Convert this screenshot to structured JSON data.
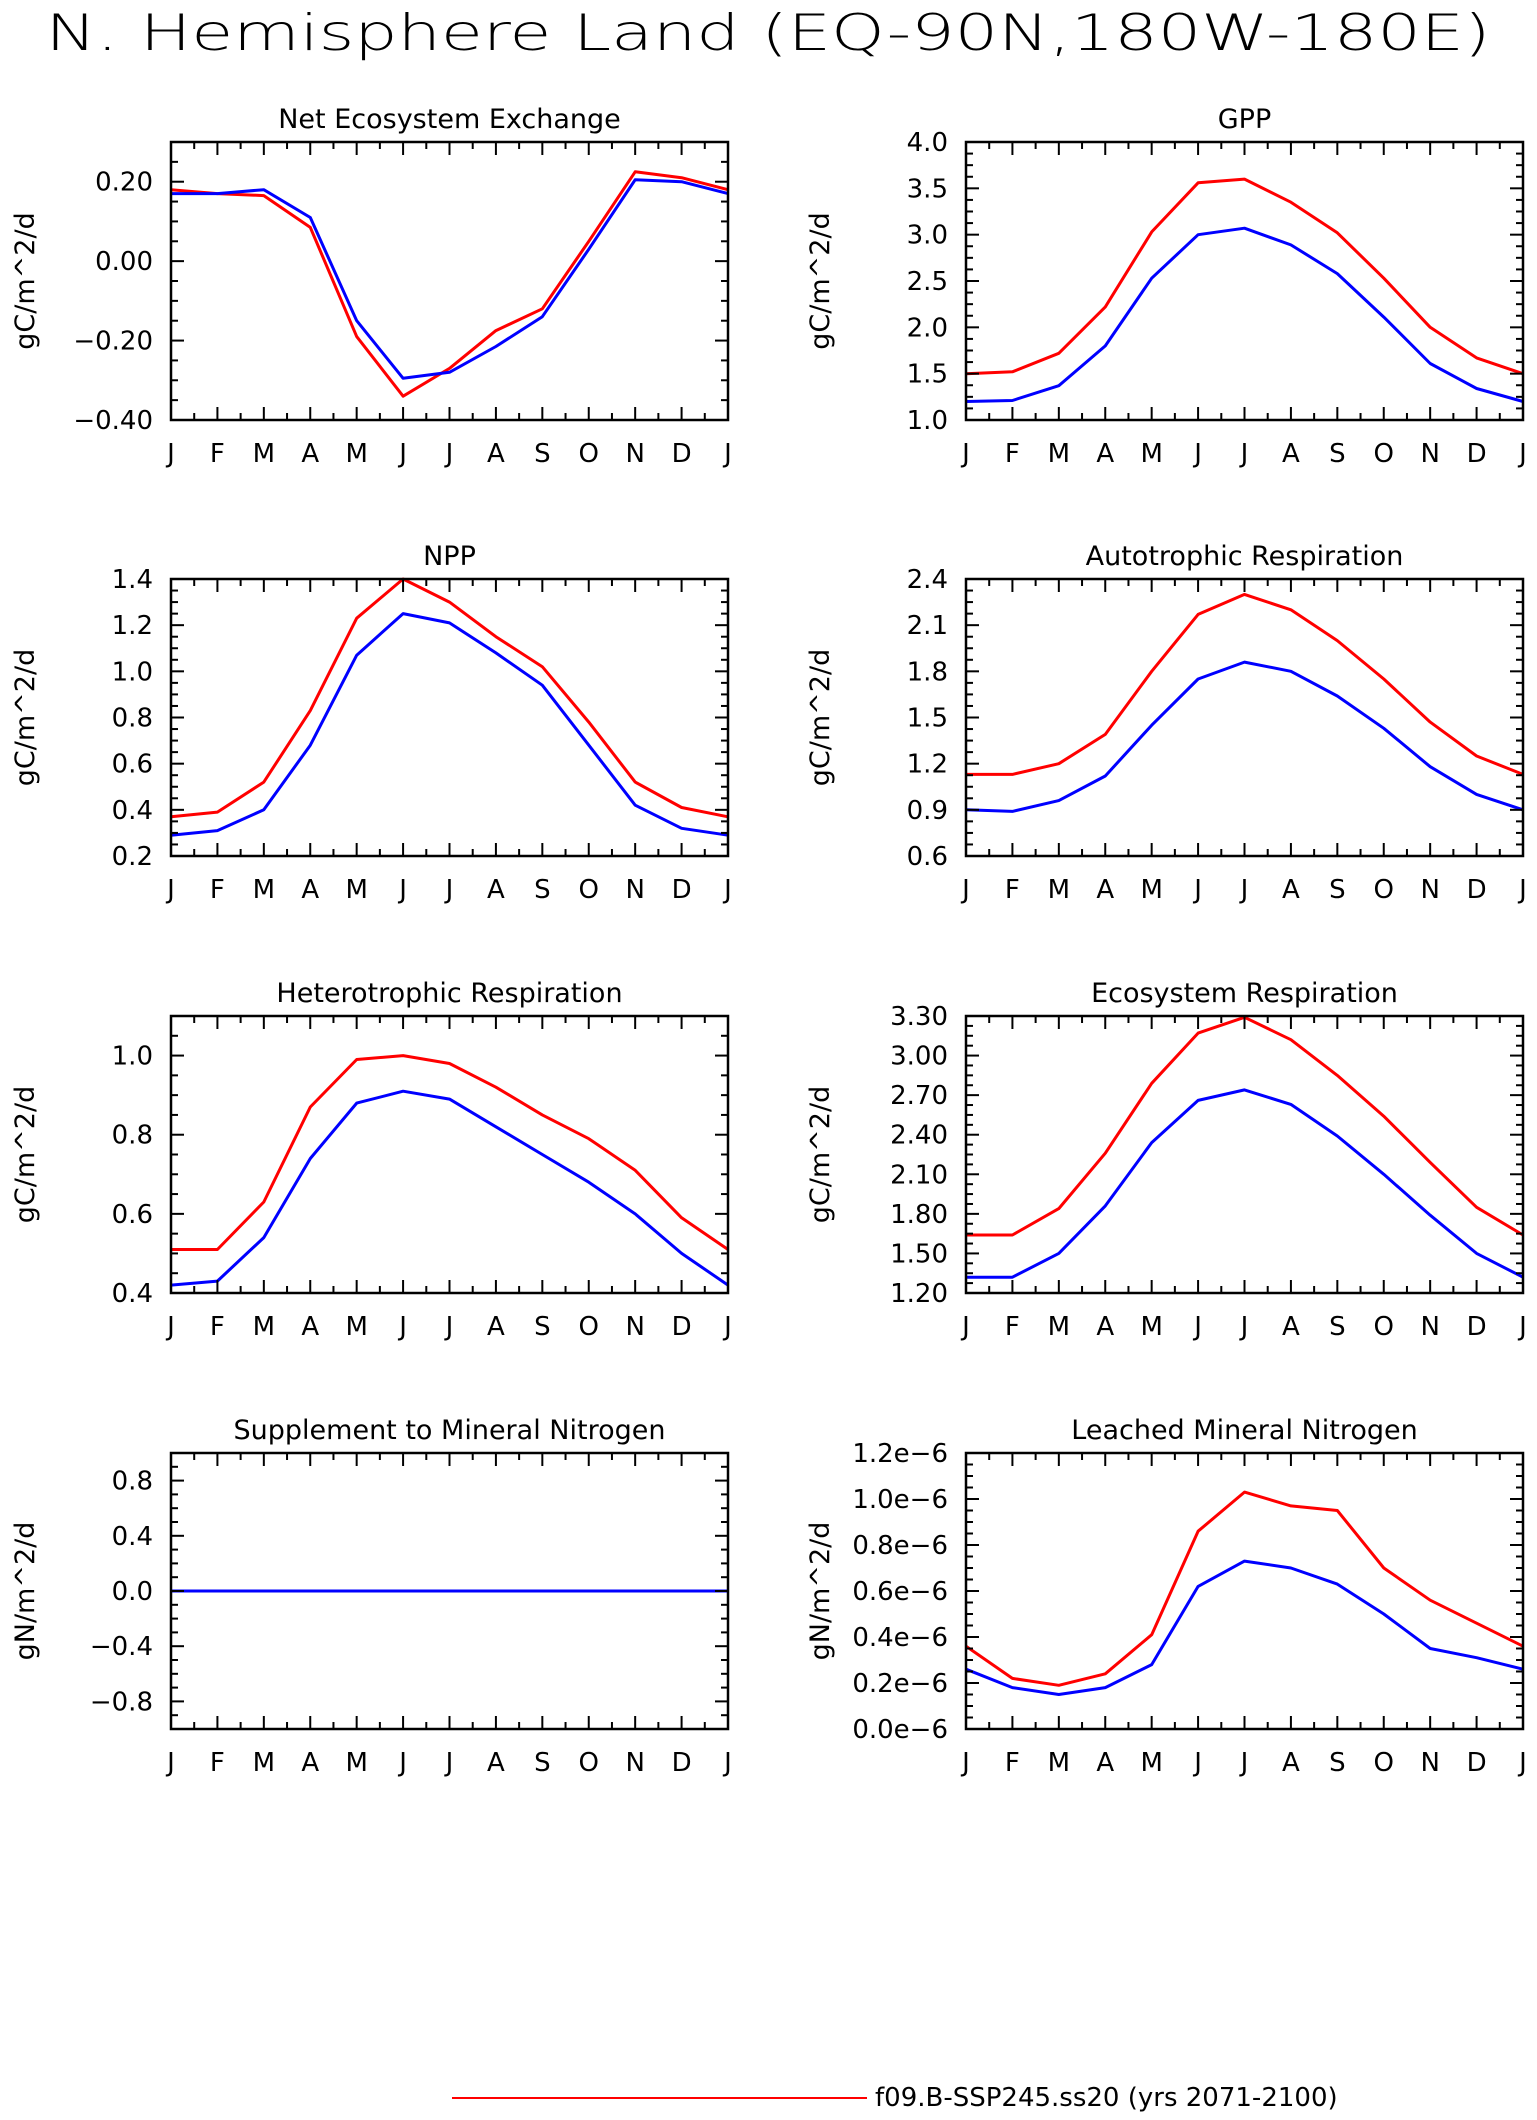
{
  "title": "N. Hemisphere Land (EQ-90N,180W-180E)",
  "colors": {
    "series_1": "#ff0000",
    "series_2": "#0000ff",
    "axis": "#000000"
  },
  "legend": [
    {
      "color": "#ff0000",
      "label": "f09.B-SSP245.ss20 (yrs 2071-2100)"
    }
  ],
  "chart_data": [
    {
      "type": "line",
      "title": "Net Ecosystem Exchange",
      "ylabel": "gC/m^2/d",
      "x": [
        "J",
        "F",
        "M",
        "A",
        "M",
        "J",
        "J",
        "A",
        "S",
        "O",
        "N",
        "D",
        "J"
      ],
      "ylim": [
        -0.4,
        0.3
      ],
      "yticks": [
        -0.4,
        -0.2,
        0.0,
        0.2
      ],
      "ytick_labels": [
        "−0.40",
        "−0.20",
        "0.00",
        "0.20"
      ],
      "series": [
        {
          "color": "#ff0000",
          "values": [
            0.18,
            0.17,
            0.165,
            0.085,
            -0.19,
            -0.34,
            -0.27,
            -0.175,
            -0.12,
            0.05,
            0.225,
            0.21,
            0.18
          ]
        },
        {
          "color": "#0000ff",
          "values": [
            0.17,
            0.17,
            0.18,
            0.11,
            -0.15,
            -0.295,
            -0.28,
            -0.215,
            -0.14,
            0.03,
            0.205,
            0.2,
            0.17
          ]
        }
      ]
    },
    {
      "type": "line",
      "title": "GPP",
      "ylabel": "gC/m^2/d",
      "x": [
        "J",
        "F",
        "M",
        "A",
        "M",
        "J",
        "J",
        "A",
        "S",
        "O",
        "N",
        "D",
        "J"
      ],
      "ylim": [
        1.0,
        4.0
      ],
      "yticks": [
        1.0,
        1.5,
        2.0,
        2.5,
        3.0,
        3.5,
        4.0
      ],
      "ytick_labels": [
        "1.0",
        "1.5",
        "2.0",
        "2.5",
        "3.0",
        "3.5",
        "4.0"
      ],
      "series": [
        {
          "color": "#ff0000",
          "values": [
            1.5,
            1.52,
            1.72,
            2.22,
            3.03,
            3.56,
            3.6,
            3.35,
            3.02,
            2.53,
            2.0,
            1.67,
            1.5
          ]
        },
        {
          "color": "#0000ff",
          "values": [
            1.2,
            1.21,
            1.37,
            1.8,
            2.53,
            3.0,
            3.07,
            2.89,
            2.58,
            2.11,
            1.61,
            1.34,
            1.2
          ]
        }
      ]
    },
    {
      "type": "line",
      "title": "NPP",
      "ylabel": "gC/m^2/d",
      "x": [
        "J",
        "F",
        "M",
        "A",
        "M",
        "J",
        "J",
        "A",
        "S",
        "O",
        "N",
        "D",
        "J"
      ],
      "ylim": [
        0.2,
        1.4
      ],
      "yticks": [
        0.2,
        0.4,
        0.6,
        0.8,
        1.0,
        1.2,
        1.4
      ],
      "ytick_labels": [
        "0.2",
        "0.4",
        "0.6",
        "0.8",
        "1.0",
        "1.2",
        "1.4"
      ],
      "series": [
        {
          "color": "#ff0000",
          "values": [
            0.37,
            0.39,
            0.52,
            0.83,
            1.23,
            1.4,
            1.3,
            1.15,
            1.02,
            0.78,
            0.52,
            0.41,
            0.37
          ]
        },
        {
          "color": "#0000ff",
          "values": [
            0.29,
            0.31,
            0.4,
            0.68,
            1.07,
            1.25,
            1.21,
            1.08,
            0.94,
            0.68,
            0.42,
            0.32,
            0.29
          ]
        }
      ]
    },
    {
      "type": "line",
      "title": "Autotrophic Respiration",
      "ylabel": "gC/m^2/d",
      "x": [
        "J",
        "F",
        "M",
        "A",
        "M",
        "J",
        "J",
        "A",
        "S",
        "O",
        "N",
        "D",
        "J"
      ],
      "ylim": [
        0.6,
        2.4
      ],
      "yticks": [
        0.6,
        0.9,
        1.2,
        1.5,
        1.8,
        2.1,
        2.4
      ],
      "ytick_labels": [
        "0.6",
        "0.9",
        "1.2",
        "1.5",
        "1.8",
        "2.1",
        "2.4"
      ],
      "series": [
        {
          "color": "#ff0000",
          "values": [
            1.13,
            1.13,
            1.2,
            1.39,
            1.8,
            2.17,
            2.3,
            2.2,
            2.0,
            1.75,
            1.47,
            1.25,
            1.13
          ]
        },
        {
          "color": "#0000ff",
          "values": [
            0.9,
            0.89,
            0.96,
            1.12,
            1.45,
            1.75,
            1.86,
            1.8,
            1.64,
            1.43,
            1.18,
            1.0,
            0.9
          ]
        }
      ]
    },
    {
      "type": "line",
      "title": "Heterotrophic Respiration",
      "ylabel": "gC/m^2/d",
      "x": [
        "J",
        "F",
        "M",
        "A",
        "M",
        "J",
        "J",
        "A",
        "S",
        "O",
        "N",
        "D",
        "J"
      ],
      "ylim": [
        0.4,
        1.1
      ],
      "yticks": [
        0.4,
        0.6,
        0.8,
        1.0
      ],
      "ytick_labels": [
        "0.4",
        "0.6",
        "0.8",
        "1.0"
      ],
      "series": [
        {
          "color": "#ff0000",
          "values": [
            0.51,
            0.51,
            0.63,
            0.87,
            0.99,
            1.0,
            0.98,
            0.92,
            0.85,
            0.79,
            0.71,
            0.59,
            0.51
          ]
        },
        {
          "color": "#0000ff",
          "values": [
            0.42,
            0.43,
            0.54,
            0.74,
            0.88,
            0.91,
            0.89,
            0.82,
            0.75,
            0.68,
            0.6,
            0.5,
            0.42
          ]
        }
      ]
    },
    {
      "type": "line",
      "title": "Ecosystem Respiration",
      "ylabel": "gC/m^2/d",
      "x": [
        "J",
        "F",
        "M",
        "A",
        "M",
        "J",
        "J",
        "A",
        "S",
        "O",
        "N",
        "D",
        "J"
      ],
      "ylim": [
        1.2,
        3.3
      ],
      "yticks": [
        1.2,
        1.5,
        1.8,
        2.1,
        2.4,
        2.7,
        3.0,
        3.3
      ],
      "ytick_labels": [
        "1.20",
        "1.50",
        "1.80",
        "2.10",
        "2.40",
        "2.70",
        "3.00",
        "3.30"
      ],
      "series": [
        {
          "color": "#ff0000",
          "values": [
            1.64,
            1.64,
            1.84,
            2.26,
            2.79,
            3.17,
            3.29,
            3.12,
            2.85,
            2.54,
            2.19,
            1.85,
            1.64
          ]
        },
        {
          "color": "#0000ff",
          "values": [
            1.32,
            1.32,
            1.5,
            1.86,
            2.34,
            2.66,
            2.74,
            2.63,
            2.39,
            2.1,
            1.79,
            1.5,
            1.32
          ]
        }
      ]
    },
    {
      "type": "line",
      "title": "Supplement to Mineral Nitrogen",
      "ylabel": "gN/m^2/d",
      "x": [
        "J",
        "F",
        "M",
        "A",
        "M",
        "J",
        "J",
        "A",
        "S",
        "O",
        "N",
        "D",
        "J"
      ],
      "ylim": [
        -1.0,
        1.0
      ],
      "yticks": [
        -0.8,
        -0.4,
        0.0,
        0.4,
        0.8
      ],
      "ytick_labels": [
        "−0.8",
        "−0.4",
        "0.0",
        "0.4",
        "0.8"
      ],
      "series": [
        {
          "color": "#ff0000",
          "values": [
            0,
            0,
            0,
            0,
            0,
            0,
            0,
            0,
            0,
            0,
            0,
            0,
            0
          ]
        },
        {
          "color": "#0000ff",
          "values": [
            0,
            0,
            0,
            0,
            0,
            0,
            0,
            0,
            0,
            0,
            0,
            0,
            0
          ]
        }
      ]
    },
    {
      "type": "line",
      "title": "Leached Mineral Nitrogen",
      "ylabel": "gN/m^2/d",
      "x": [
        "J",
        "F",
        "M",
        "A",
        "M",
        "J",
        "J",
        "A",
        "S",
        "O",
        "N",
        "D",
        "J"
      ],
      "ylim": [
        0.0,
        1.2
      ],
      "yticks": [
        0.0,
        0.2,
        0.4,
        0.6,
        0.8,
        1.0,
        1.2
      ],
      "ytick_labels": [
        "0.0e−6",
        "0.2e−6",
        "0.4e−6",
        "0.6e−6",
        "0.8e−6",
        "1.0e−6",
        "1.2e−6"
      ],
      "series": [
        {
          "color": "#ff0000",
          "values": [
            0.36,
            0.22,
            0.19,
            0.24,
            0.41,
            0.86,
            1.03,
            0.97,
            0.95,
            0.7,
            0.56,
            0.46,
            0.36
          ]
        },
        {
          "color": "#0000ff",
          "values": [
            0.26,
            0.18,
            0.15,
            0.18,
            0.28,
            0.62,
            0.73,
            0.7,
            0.63,
            0.5,
            0.35,
            0.31,
            0.26
          ]
        }
      ]
    }
  ]
}
